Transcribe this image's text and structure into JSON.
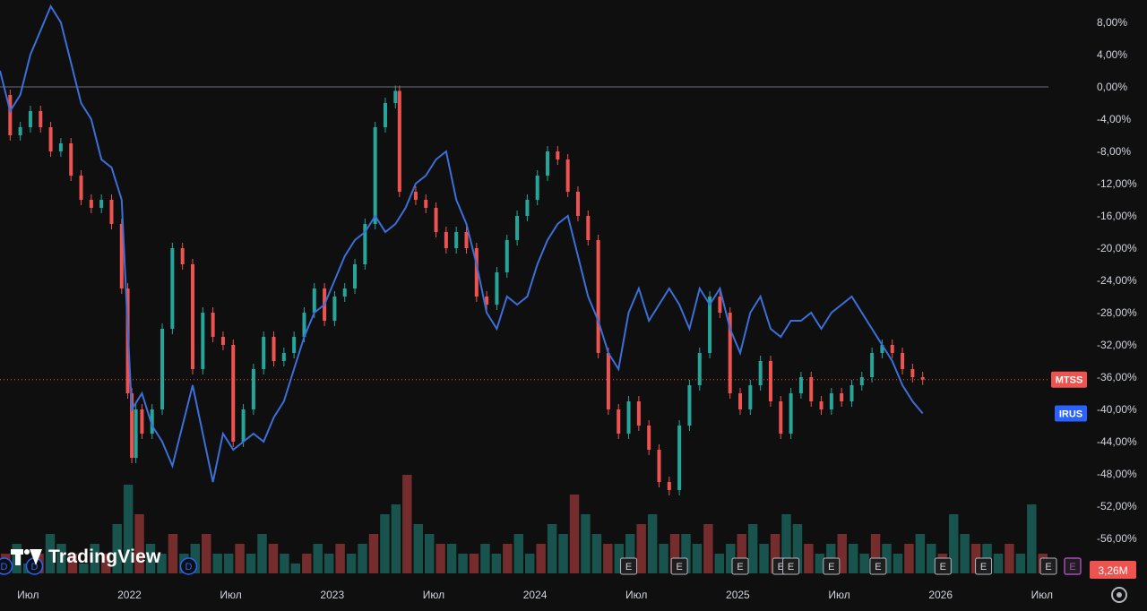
{
  "branding": {
    "logo_text": "TradingView"
  },
  "settings_icon": "gear-icon",
  "chart_data": {
    "type": "line",
    "y_unit": "%",
    "ylim": [
      -58,
      12
    ],
    "y_ticks": [
      "8,00%",
      "4,00%",
      "0,00%",
      "-4,00%",
      "-8,00%",
      "-12,00%",
      "-16,00%",
      "-20,00%",
      "-24,00%",
      "-28,00%",
      "-32,00%",
      "-36,00%",
      "-40,00%",
      "-44,00%",
      "-48,00%",
      "-52,00%",
      "-56,00%"
    ],
    "y_tick_values": [
      8,
      4,
      0,
      -4,
      -8,
      -12,
      -16,
      -20,
      -24,
      -28,
      -32,
      -36,
      -40,
      -44,
      -48,
      -52,
      -56
    ],
    "x_ticks": [
      {
        "label": "Июл",
        "t": 2021.5
      },
      {
        "label": "2022",
        "t": 2022.0
      },
      {
        "label": "Июл",
        "t": 2022.5
      },
      {
        "label": "2023",
        "t": 2023.0
      },
      {
        "label": "Июл",
        "t": 2023.5
      },
      {
        "label": "2024",
        "t": 2024.0
      },
      {
        "label": "Июл",
        "t": 2024.5
      },
      {
        "label": "2025",
        "t": 2025.0
      },
      {
        "label": "Июл",
        "t": 2025.5
      },
      {
        "label": "2026",
        "t": 2026.0
      },
      {
        "label": "Июл",
        "t": 2026.5
      }
    ],
    "grid": false,
    "series": [
      {
        "name": "MTSS",
        "kind": "candles",
        "color_up": "#26a69a",
        "color_down": "#ef5350",
        "last_value": -36.3,
        "values": [
          [
            2021.45,
            -1
          ],
          [
            2021.5,
            -6
          ],
          [
            2021.55,
            -5
          ],
          [
            2021.6,
            -3
          ],
          [
            2021.65,
            -5
          ],
          [
            2021.7,
            -8
          ],
          [
            2021.75,
            -7
          ],
          [
            2021.8,
            -11
          ],
          [
            2021.85,
            -14
          ],
          [
            2021.9,
            -15
          ],
          [
            2021.95,
            -14
          ],
          [
            2022.0,
            -17
          ],
          [
            2022.05,
            -25
          ],
          [
            2022.08,
            -38
          ],
          [
            2022.1,
            -46
          ],
          [
            2022.12,
            -40
          ],
          [
            2022.15,
            -43
          ],
          [
            2022.2,
            -40
          ],
          [
            2022.25,
            -30
          ],
          [
            2022.3,
            -20
          ],
          [
            2022.35,
            -22
          ],
          [
            2022.4,
            -35
          ],
          [
            2022.45,
            -28
          ],
          [
            2022.5,
            -31
          ],
          [
            2022.55,
            -32
          ],
          [
            2022.6,
            -44
          ],
          [
            2022.65,
            -40
          ],
          [
            2022.7,
            -35
          ],
          [
            2022.75,
            -31
          ],
          [
            2022.8,
            -34
          ],
          [
            2022.85,
            -33
          ],
          [
            2022.9,
            -31
          ],
          [
            2022.95,
            -28
          ],
          [
            2023.0,
            -25
          ],
          [
            2023.05,
            -29
          ],
          [
            2023.1,
            -26
          ],
          [
            2023.15,
            -25
          ],
          [
            2023.2,
            -22
          ],
          [
            2023.25,
            -17
          ],
          [
            2023.3,
            -5
          ],
          [
            2023.35,
            -2
          ],
          [
            2023.4,
            -0.5
          ],
          [
            2023.42,
            -13
          ],
          [
            2023.5,
            -14
          ],
          [
            2023.55,
            -15
          ],
          [
            2023.6,
            -18
          ],
          [
            2023.65,
            -20
          ],
          [
            2023.7,
            -18
          ],
          [
            2023.75,
            -20
          ],
          [
            2023.8,
            -26
          ],
          [
            2023.85,
            -27
          ],
          [
            2023.9,
            -23
          ],
          [
            2023.95,
            -19
          ],
          [
            2024.0,
            -16
          ],
          [
            2024.05,
            -14
          ],
          [
            2024.1,
            -11
          ],
          [
            2024.15,
            -8
          ],
          [
            2024.2,
            -9
          ],
          [
            2024.25,
            -13
          ],
          [
            2024.3,
            -16
          ],
          [
            2024.35,
            -19
          ],
          [
            2024.4,
            -33
          ],
          [
            2024.45,
            -40
          ],
          [
            2024.5,
            -43
          ],
          [
            2024.55,
            -39
          ],
          [
            2024.6,
            -42
          ],
          [
            2024.65,
            -45
          ],
          [
            2024.7,
            -49
          ],
          [
            2024.75,
            -50
          ],
          [
            2024.8,
            -42
          ],
          [
            2024.85,
            -37
          ],
          [
            2024.9,
            -33
          ],
          [
            2024.95,
            -26
          ],
          [
            2025.0,
            -28
          ],
          [
            2025.05,
            -38
          ],
          [
            2025.1,
            -40
          ],
          [
            2025.15,
            -37
          ],
          [
            2025.2,
            -34
          ],
          [
            2025.25,
            -39
          ],
          [
            2025.3,
            -43
          ],
          [
            2025.35,
            -38
          ],
          [
            2025.4,
            -36
          ],
          [
            2025.45,
            -39
          ],
          [
            2025.5,
            -40
          ],
          [
            2025.55,
            -38
          ],
          [
            2025.6,
            -39
          ],
          [
            2025.65,
            -37
          ],
          [
            2025.7,
            -36
          ],
          [
            2025.75,
            -33
          ],
          [
            2025.8,
            -32
          ],
          [
            2025.85,
            -33
          ],
          [
            2025.9,
            -35
          ],
          [
            2025.95,
            -36
          ],
          [
            2026.0,
            -36.3
          ]
        ]
      },
      {
        "name": "IRUS",
        "kind": "line",
        "color": "#3b6fd9",
        "last_value": -40.5,
        "values": [
          [
            2021.45,
            2
          ],
          [
            2021.5,
            -3
          ],
          [
            2021.55,
            -1
          ],
          [
            2021.6,
            4
          ],
          [
            2021.65,
            7
          ],
          [
            2021.7,
            10
          ],
          [
            2021.75,
            8
          ],
          [
            2021.8,
            3
          ],
          [
            2021.85,
            -2
          ],
          [
            2021.9,
            -4
          ],
          [
            2021.95,
            -9
          ],
          [
            2022.0,
            -10
          ],
          [
            2022.05,
            -14
          ],
          [
            2022.08,
            -30
          ],
          [
            2022.1,
            -40
          ],
          [
            2022.15,
            -38
          ],
          [
            2022.2,
            -42
          ],
          [
            2022.25,
            -44
          ],
          [
            2022.3,
            -47
          ],
          [
            2022.35,
            -42
          ],
          [
            2022.4,
            -37
          ],
          [
            2022.45,
            -43
          ],
          [
            2022.5,
            -49
          ],
          [
            2022.55,
            -43
          ],
          [
            2022.6,
            -45
          ],
          [
            2022.65,
            -44
          ],
          [
            2022.7,
            -43
          ],
          [
            2022.75,
            -44
          ],
          [
            2022.8,
            -41
          ],
          [
            2022.85,
            -39
          ],
          [
            2022.9,
            -35
          ],
          [
            2022.95,
            -31
          ],
          [
            2023.0,
            -28
          ],
          [
            2023.05,
            -27
          ],
          [
            2023.1,
            -24
          ],
          [
            2023.15,
            -21
          ],
          [
            2023.2,
            -19
          ],
          [
            2023.25,
            -18
          ],
          [
            2023.3,
            -16
          ],
          [
            2023.35,
            -18
          ],
          [
            2023.4,
            -17
          ],
          [
            2023.45,
            -15
          ],
          [
            2023.5,
            -12
          ],
          [
            2023.55,
            -11
          ],
          [
            2023.6,
            -9
          ],
          [
            2023.65,
            -8
          ],
          [
            2023.7,
            -14
          ],
          [
            2023.75,
            -17
          ],
          [
            2023.8,
            -22
          ],
          [
            2023.85,
            -28
          ],
          [
            2023.9,
            -30
          ],
          [
            2023.95,
            -26
          ],
          [
            2024.0,
            -27
          ],
          [
            2024.05,
            -26
          ],
          [
            2024.1,
            -22
          ],
          [
            2024.15,
            -19
          ],
          [
            2024.2,
            -17
          ],
          [
            2024.25,
            -16
          ],
          [
            2024.3,
            -21
          ],
          [
            2024.35,
            -26
          ],
          [
            2024.4,
            -29
          ],
          [
            2024.45,
            -33
          ],
          [
            2024.5,
            -35
          ],
          [
            2024.55,
            -28
          ],
          [
            2024.6,
            -25
          ],
          [
            2024.65,
            -29
          ],
          [
            2024.7,
            -27
          ],
          [
            2024.75,
            -25
          ],
          [
            2024.8,
            -27
          ],
          [
            2024.85,
            -30
          ],
          [
            2024.9,
            -25
          ],
          [
            2024.95,
            -27
          ],
          [
            2025.0,
            -25
          ],
          [
            2025.05,
            -30
          ],
          [
            2025.1,
            -33
          ],
          [
            2025.15,
            -28
          ],
          [
            2025.2,
            -26
          ],
          [
            2025.25,
            -30
          ],
          [
            2025.3,
            -31
          ],
          [
            2025.35,
            -29
          ],
          [
            2025.4,
            -29
          ],
          [
            2025.45,
            -28
          ],
          [
            2025.5,
            -30
          ],
          [
            2025.55,
            -28
          ],
          [
            2025.6,
            -27
          ],
          [
            2025.65,
            -26
          ],
          [
            2025.7,
            -28
          ],
          [
            2025.75,
            -30
          ],
          [
            2025.8,
            -32
          ],
          [
            2025.85,
            -34
          ],
          [
            2025.9,
            -37
          ],
          [
            2025.95,
            -39
          ],
          [
            2026.0,
            -40.5
          ]
        ]
      }
    ],
    "volume": {
      "label": "3,26M",
      "color_up": "#26a69a",
      "color_down": "#ef5350",
      "values": [
        2,
        3,
        1,
        2,
        4,
        3,
        2,
        1,
        3,
        2,
        5,
        9,
        6,
        3,
        2,
        4,
        2,
        3,
        4,
        2,
        2,
        3,
        2,
        4,
        3,
        2,
        1,
        2,
        3,
        2,
        3,
        2,
        3,
        4,
        6,
        7,
        10,
        5,
        4,
        3,
        3,
        2,
        2,
        3,
        2,
        3,
        4,
        2,
        3,
        5,
        4,
        8,
        6,
        4,
        3,
        3,
        4,
        5,
        6,
        3,
        4,
        4,
        3,
        5,
        2,
        3,
        4,
        5,
        3,
        4,
        6,
        5,
        3,
        2,
        3,
        4,
        3,
        2,
        4,
        3,
        2,
        3,
        4,
        3,
        2,
        6,
        4,
        3,
        3,
        2,
        3,
        2,
        7,
        2
      ]
    },
    "event_markers": [
      {
        "kind": "D",
        "t": 2021.47
      },
      {
        "kind": "D",
        "t": 2021.62
      },
      {
        "kind": "D",
        "t": 2022.38
      },
      {
        "kind": "E",
        "t": 2024.55
      },
      {
        "kind": "E",
        "t": 2024.8
      },
      {
        "kind": "E",
        "t": 2025.1
      },
      {
        "kind": "E",
        "t": 2025.3
      },
      {
        "kind": "E",
        "t": 2025.35
      },
      {
        "kind": "E",
        "t": 2025.55
      },
      {
        "kind": "E",
        "t": 2025.78
      },
      {
        "kind": "E",
        "t": 2026.1
      },
      {
        "kind": "E",
        "t": 2026.3
      },
      {
        "kind": "E",
        "t": 2026.62
      }
    ]
  }
}
